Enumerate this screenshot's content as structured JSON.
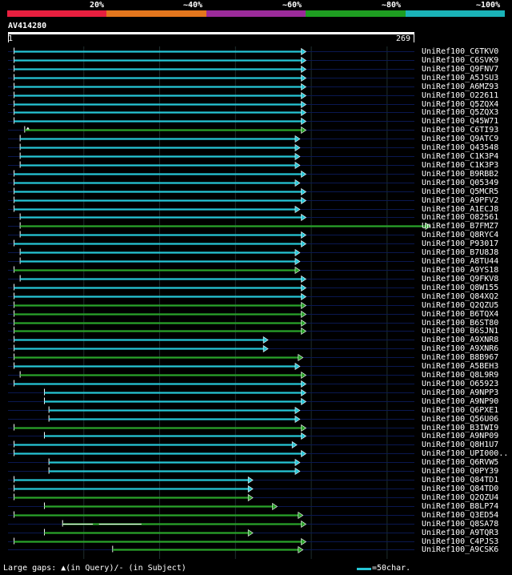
{
  "legend": {
    "labels": [
      "20%",
      "~40%",
      "~60%",
      "~80%",
      "~100%"
    ],
    "colors": [
      "#e81f3f",
      "#e3761d",
      "#9b2b9a",
      "#1e9e21",
      "#1ab3b8"
    ]
  },
  "query": {
    "id": "AV414280",
    "start": "1",
    "end": "269",
    "length": 269
  },
  "colors": {
    "cyan": "#26c6d6",
    "green": "#29a32a",
    "navy": "#0a1850",
    "grid": "#1e2e2e"
  },
  "hits": [
    {
      "name": "UniRef100_C6TKV0",
      "s": 5,
      "e": 197,
      "c": "cyan",
      "gaps": [],
      "qgap": null
    },
    {
      "name": "UniRef100_C6SVK9",
      "s": 5,
      "e": 197,
      "c": "cyan",
      "gaps": [],
      "qgap": null
    },
    {
      "name": "UniRef100_Q9FNV7",
      "s": 5,
      "e": 197,
      "c": "cyan",
      "gaps": [],
      "qgap": null
    },
    {
      "name": "UniRef100_A5JSU3",
      "s": 5,
      "e": 197,
      "c": "cyan",
      "gaps": [],
      "qgap": null
    },
    {
      "name": "UniRef100_A6MZ93",
      "s": 5,
      "e": 197,
      "c": "cyan",
      "gaps": [],
      "qgap": null
    },
    {
      "name": "UniRef100_O22611",
      "s": 5,
      "e": 197,
      "c": "cyan",
      "gaps": [],
      "qgap": null
    },
    {
      "name": "UniRef100_Q5ZQX4",
      "s": 5,
      "e": 197,
      "c": "cyan",
      "gaps": [],
      "qgap": null
    },
    {
      "name": "UniRef100_Q5ZQX3",
      "s": 5,
      "e": 197,
      "c": "cyan",
      "gaps": [],
      "qgap": null
    },
    {
      "name": "UniRef100_Q45W71",
      "s": 5,
      "e": 197,
      "c": "cyan",
      "gaps": [],
      "qgap": null
    },
    {
      "name": "UniRef100_C6TI93",
      "s": 12,
      "e": 197,
      "c": "green",
      "gaps": [],
      "qgap": 12
    },
    {
      "name": "UniRef100_Q9ATC9",
      "s": 9,
      "e": 193,
      "c": "cyan",
      "gaps": [],
      "qgap": null
    },
    {
      "name": "UniRef100_Q43548",
      "s": 9,
      "e": 193,
      "c": "cyan",
      "gaps": [],
      "qgap": null
    },
    {
      "name": "UniRef100_C1K3P4",
      "s": 9,
      "e": 193,
      "c": "cyan",
      "gaps": [],
      "qgap": null
    },
    {
      "name": "UniRef100_C1K3P3",
      "s": 9,
      "e": 193,
      "c": "cyan",
      "gaps": [],
      "qgap": null
    },
    {
      "name": "UniRef100_B9RBB2",
      "s": 5,
      "e": 197,
      "c": "cyan",
      "gaps": [],
      "qgap": null
    },
    {
      "name": "UniRef100_Q05349",
      "s": 5,
      "e": 193,
      "c": "cyan",
      "gaps": [],
      "qgap": null
    },
    {
      "name": "UniRef100_Q5MCR5",
      "s": 5,
      "e": 197,
      "c": "cyan",
      "gaps": [],
      "qgap": null
    },
    {
      "name": "UniRef100_A9PFV2",
      "s": 5,
      "e": 197,
      "c": "cyan",
      "gaps": [],
      "qgap": null
    },
    {
      "name": "UniRef100_A1ECJ8",
      "s": 5,
      "e": 193,
      "c": "cyan",
      "gaps": [],
      "qgap": null
    },
    {
      "name": "UniRef100_O82561",
      "s": 9,
      "e": 197,
      "c": "cyan",
      "gaps": [],
      "qgap": null
    },
    {
      "name": "UniRef100_B7FMZ7",
      "s": 9,
      "e": 279,
      "c": "green",
      "gaps": [],
      "qgap": null
    },
    {
      "name": "UniRef100_Q8RYC4",
      "s": 9,
      "e": 197,
      "c": "cyan",
      "gaps": [],
      "qgap": null
    },
    {
      "name": "UniRef100_P93017",
      "s": 5,
      "e": 197,
      "c": "cyan",
      "gaps": [],
      "qgap": null
    },
    {
      "name": "UniRef100_B7U8J8",
      "s": 9,
      "e": 193,
      "c": "cyan",
      "gaps": [],
      "qgap": null
    },
    {
      "name": "UniRef100_A8TU44",
      "s": 9,
      "e": 193,
      "c": "cyan",
      "gaps": [],
      "qgap": null
    },
    {
      "name": "UniRef100_A9YS18",
      "s": 5,
      "e": 193,
      "c": "green",
      "gaps": [],
      "qgap": null
    },
    {
      "name": "UniRef100_Q9FKV8",
      "s": 9,
      "e": 197,
      "c": "cyan",
      "gaps": [],
      "qgap": null
    },
    {
      "name": "UniRef100_Q8W155",
      "s": 5,
      "e": 197,
      "c": "cyan",
      "gaps": [],
      "qgap": null
    },
    {
      "name": "UniRef100_Q84XQ2",
      "s": 5,
      "e": 197,
      "c": "cyan",
      "gaps": [],
      "qgap": null
    },
    {
      "name": "UniRef100_Q2QZU5",
      "s": 5,
      "e": 197,
      "c": "green",
      "gaps": [],
      "qgap": null
    },
    {
      "name": "UniRef100_B6TQX4",
      "s": 5,
      "e": 197,
      "c": "green",
      "gaps": [],
      "qgap": null
    },
    {
      "name": "UniRef100_B6ST80",
      "s": 5,
      "e": 197,
      "c": "green",
      "gaps": [],
      "qgap": null
    },
    {
      "name": "UniRef100_B6SJN1",
      "s": 5,
      "e": 197,
      "c": "green",
      "gaps": [],
      "qgap": null
    },
    {
      "name": "UniRef100_A9XNR8",
      "s": 5,
      "e": 172,
      "c": "cyan",
      "gaps": [],
      "qgap": null
    },
    {
      "name": "UniRef100_A9XNR6",
      "s": 5,
      "e": 172,
      "c": "cyan",
      "gaps": [],
      "qgap": null
    },
    {
      "name": "UniRef100_B8B967",
      "s": 5,
      "e": 195,
      "c": "green",
      "gaps": [],
      "qgap": null
    },
    {
      "name": "UniRef100_A5BEH3",
      "s": 5,
      "e": 193,
      "c": "cyan",
      "gaps": [],
      "qgap": null
    },
    {
      "name": "UniRef100_Q8L9R9",
      "s": 9,
      "e": 197,
      "c": "green",
      "gaps": [],
      "qgap": null
    },
    {
      "name": "UniRef100_O65923",
      "s": 5,
      "e": 197,
      "c": "cyan",
      "gaps": [],
      "qgap": null
    },
    {
      "name": "UniRef100_A9NPP3",
      "s": 25,
      "e": 197,
      "c": "cyan",
      "gaps": [],
      "qgap": null
    },
    {
      "name": "UniRef100_A9NP90",
      "s": 25,
      "e": 197,
      "c": "cyan",
      "gaps": [],
      "qgap": null
    },
    {
      "name": "UniRef100_Q6PXE1",
      "s": 28,
      "e": 193,
      "c": "cyan",
      "gaps": [],
      "qgap": null
    },
    {
      "name": "UniRef100_Q56U06",
      "s": 28,
      "e": 193,
      "c": "cyan",
      "gaps": [],
      "qgap": null
    },
    {
      "name": "UniRef100_B3IWI9",
      "s": 5,
      "e": 197,
      "c": "green",
      "gaps": [],
      "qgap": null
    },
    {
      "name": "UniRef100_A9NP09",
      "s": 25,
      "e": 197,
      "c": "cyan",
      "gaps": [],
      "qgap": null
    },
    {
      "name": "UniRef100_Q8H1U7",
      "s": 5,
      "e": 191,
      "c": "cyan",
      "gaps": [],
      "qgap": null
    },
    {
      "name": "UniRef100_UPI000..",
      "s": 5,
      "e": 197,
      "c": "cyan",
      "gaps": [],
      "qgap": null
    },
    {
      "name": "UniRef100_Q6RVW5",
      "s": 28,
      "e": 193,
      "c": "cyan",
      "gaps": [],
      "qgap": null
    },
    {
      "name": "UniRef100_Q0PY39",
      "s": 28,
      "e": 193,
      "c": "cyan",
      "gaps": [],
      "qgap": null
    },
    {
      "name": "UniRef100_Q84TD1",
      "s": 5,
      "e": 162,
      "c": "cyan",
      "gaps": [],
      "qgap": null
    },
    {
      "name": "UniRef100_Q84TD0",
      "s": 5,
      "e": 162,
      "c": "cyan",
      "gaps": [],
      "qgap": null
    },
    {
      "name": "UniRef100_Q2QZU4",
      "s": 5,
      "e": 162,
      "c": "green",
      "gaps": [],
      "qgap": null
    },
    {
      "name": "UniRef100_B8LP74",
      "s": 25,
      "e": 178,
      "c": "green",
      "gaps": [],
      "qgap": null
    },
    {
      "name": "UniRef100_Q3ED54",
      "s": 5,
      "e": 195,
      "c": "green",
      "gaps": [],
      "qgap": null
    },
    {
      "name": "UniRef100_Q8SA78",
      "s": 37,
      "e": 197,
      "c": "green",
      "gaps": [
        {
          "a": 37,
          "b": 57
        },
        {
          "a": 61,
          "b": 89
        }
      ],
      "qgap": null
    },
    {
      "name": "UniRef100_A9TQR3",
      "s": 25,
      "e": 162,
      "c": "green",
      "gaps": [],
      "qgap": null
    },
    {
      "name": "UniRef100_C4PJS3",
      "s": 5,
      "e": 197,
      "c": "green",
      "gaps": [],
      "qgap": null
    },
    {
      "name": "UniRef100_A9CSK6",
      "s": 70,
      "e": 195,
      "c": "green",
      "gaps": [],
      "qgap": null
    }
  ],
  "footer": {
    "text": "Large gaps: ▲(in Query)/- (in Subject)",
    "scale_label": "=50char."
  }
}
